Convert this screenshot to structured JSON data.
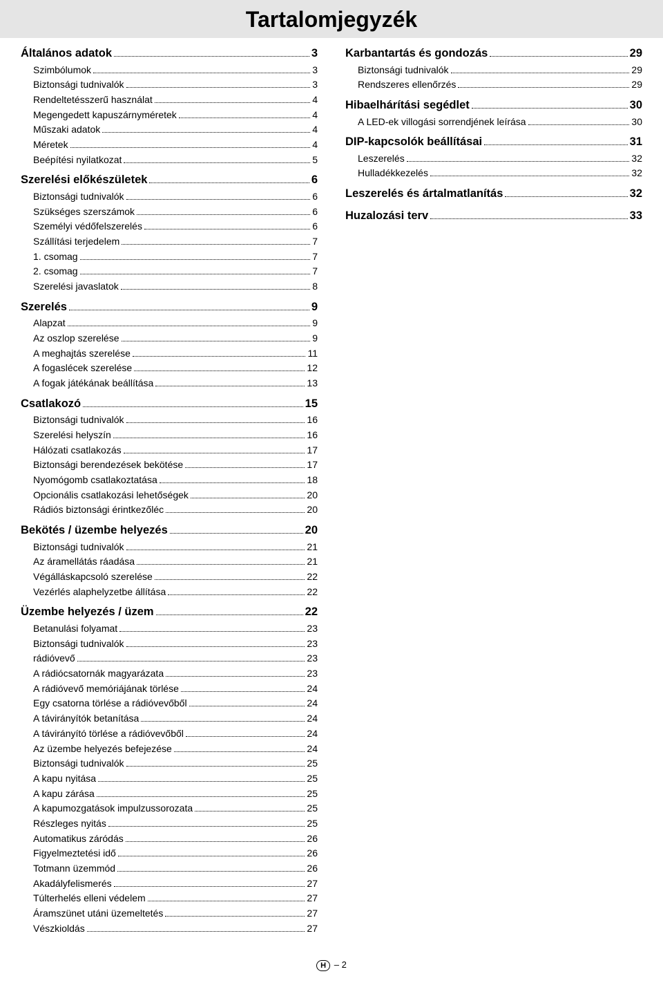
{
  "title": "Tartalomjegyzék",
  "footer": {
    "badge": "H",
    "page": "– 2"
  },
  "columns": [
    [
      {
        "type": "section",
        "label": "Általános adatok",
        "page": "3"
      },
      {
        "type": "sub",
        "label": "Szimbólumok",
        "page": "3"
      },
      {
        "type": "sub",
        "label": "Biztonsági tudnivalók",
        "page": "3"
      },
      {
        "type": "sub",
        "label": "Rendeltetésszerű használat",
        "page": "4"
      },
      {
        "type": "sub",
        "label": "Megengedett kapuszárnyméretek",
        "page": "4"
      },
      {
        "type": "sub",
        "label": "Műszaki adatok",
        "page": "4"
      },
      {
        "type": "sub",
        "label": "Méretek",
        "page": "4"
      },
      {
        "type": "sub",
        "label": "Beépítési nyilatkozat",
        "page": "5"
      },
      {
        "type": "section",
        "label": "Szerelési előkészületek",
        "page": "6"
      },
      {
        "type": "sub",
        "label": "Biztonsági tudnivalók",
        "page": "6"
      },
      {
        "type": "sub",
        "label": "Szükséges szerszámok",
        "page": "6"
      },
      {
        "type": "sub",
        "label": "Személyi védőfelszerelés",
        "page": "6"
      },
      {
        "type": "sub",
        "label": "Szállítási terjedelem",
        "page": "7"
      },
      {
        "type": "sub",
        "label": "1. csomag",
        "page": "7"
      },
      {
        "type": "sub",
        "label": "2. csomag",
        "page": "7"
      },
      {
        "type": "sub",
        "label": "Szerelési javaslatok",
        "page": "8"
      },
      {
        "type": "section",
        "label": "Szerelés",
        "page": "9"
      },
      {
        "type": "sub",
        "label": "Alapzat",
        "page": "9"
      },
      {
        "type": "sub",
        "label": "Az oszlop szerelése",
        "page": "9"
      },
      {
        "type": "sub",
        "label": "A meghajtás szerelése",
        "page": "11"
      },
      {
        "type": "sub",
        "label": "A fogaslécek szerelése",
        "page": "12"
      },
      {
        "type": "sub",
        "label": "A fogak játékának beállítása",
        "page": "13"
      },
      {
        "type": "section",
        "label": "Csatlakozó",
        "page": "15"
      },
      {
        "type": "sub",
        "label": "Biztonsági tudnivalók",
        "page": "16"
      },
      {
        "type": "sub",
        "label": "Szerelési helyszín",
        "page": "16"
      },
      {
        "type": "sub",
        "label": "Hálózati csatlakozás",
        "page": "17"
      },
      {
        "type": "sub",
        "label": "Biztonsági berendezések bekötése",
        "page": "17"
      },
      {
        "type": "sub",
        "label": "Nyomógomb csatlakoztatása",
        "page": "18"
      },
      {
        "type": "sub",
        "label": "Opcionális csatlakozási lehetőségek",
        "page": "20"
      },
      {
        "type": "sub",
        "label": "Rádiós biztonsági érintkezőléc",
        "page": "20"
      },
      {
        "type": "section",
        "label": "Bekötés / üzembe helyezés",
        "page": "20"
      },
      {
        "type": "sub",
        "label": "Biztonsági tudnivalók",
        "page": "21"
      },
      {
        "type": "sub",
        "label": "Az áramellátás ráadása",
        "page": "21"
      },
      {
        "type": "sub",
        "label": "Végálláskapcsoló szerelése",
        "page": "22"
      },
      {
        "type": "sub",
        "label": "Vezérlés alaphelyzetbe állítása",
        "page": "22"
      },
      {
        "type": "section",
        "label": "Üzembe helyezés / üzem",
        "page": "22"
      },
      {
        "type": "sub",
        "label": "Betanulási folyamat",
        "page": "23"
      },
      {
        "type": "sub",
        "label": "Biztonsági tudnivalók",
        "page": "23"
      },
      {
        "type": "sub",
        "label": "rádióvevő",
        "page": "23"
      },
      {
        "type": "sub",
        "label": "A rádiócsatornák magyarázata",
        "page": "23"
      },
      {
        "type": "sub",
        "label": "A rádióvevő memóriájának törlése",
        "page": "24"
      },
      {
        "type": "sub",
        "label": "Egy csatorna törlése a rádióvevőből",
        "page": "24"
      },
      {
        "type": "sub",
        "label": "A távirányítók betanítása",
        "page": "24"
      },
      {
        "type": "sub",
        "label": "A távirányító törlése a rádióvevőből",
        "page": "24"
      },
      {
        "type": "sub",
        "label": "Az üzembe helyezés befejezése",
        "page": "24"
      },
      {
        "type": "sub",
        "label": "Biztonsági tudnivalók",
        "page": "25"
      },
      {
        "type": "sub",
        "label": "A kapu nyitása",
        "page": "25"
      },
      {
        "type": "sub",
        "label": "A kapu zárása",
        "page": "25"
      },
      {
        "type": "sub",
        "label": "A kapumozgatások impulzussorozata",
        "page": "25"
      },
      {
        "type": "sub",
        "label": "Részleges nyitás",
        "page": "25"
      },
      {
        "type": "sub",
        "label": "Automatikus záródás",
        "page": "26"
      },
      {
        "type": "sub",
        "label": "Figyelmeztetési idő",
        "page": "26"
      },
      {
        "type": "sub",
        "label": "Totmann üzemmód",
        "page": "26"
      },
      {
        "type": "sub",
        "label": "Akadályfelismerés",
        "page": "27"
      },
      {
        "type": "sub",
        "label": "Túlterhelés elleni védelem",
        "page": "27"
      },
      {
        "type": "sub",
        "label": "Áramszünet utáni üzemeltetés",
        "page": "27"
      },
      {
        "type": "sub",
        "label": "Vészkioldás",
        "page": "27"
      }
    ],
    [
      {
        "type": "section",
        "label": "Karbantartás és gondozás",
        "page": "29"
      },
      {
        "type": "sub",
        "label": "Biztonsági tudnivalók",
        "page": "29"
      },
      {
        "type": "sub",
        "label": "Rendszeres ellenőrzés",
        "page": "29"
      },
      {
        "type": "section",
        "label": "Hibaelhárítási segédlet",
        "page": "30"
      },
      {
        "type": "sub",
        "label": "A LED-ek villogási sorrendjének leírása",
        "page": "30"
      },
      {
        "type": "section",
        "label": "DIP-kapcsolók beállításai",
        "page": "31"
      },
      {
        "type": "sub",
        "label": "Leszerelés",
        "page": "32"
      },
      {
        "type": "sub",
        "label": "Hulladékkezelés",
        "page": "32"
      },
      {
        "type": "section",
        "label": "Leszerelés és ártalmatlanítás",
        "page": "32"
      },
      {
        "type": "section",
        "label": "Huzalozási terv",
        "page": "33"
      }
    ]
  ]
}
